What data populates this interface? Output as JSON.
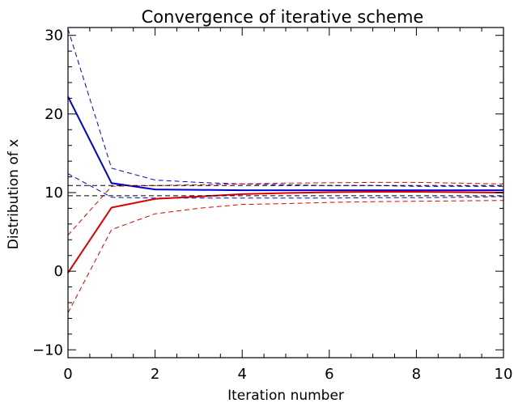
{
  "chart_data": {
    "type": "line",
    "title": "Convergence of iterative scheme",
    "xlabel": "Iteration number",
    "ylabel": "Distribution of x",
    "xlim": [
      0,
      10
    ],
    "ylim": [
      -11,
      31
    ],
    "x_ticks": [
      0,
      2,
      4,
      6,
      8,
      10
    ],
    "y_ticks": [
      -10,
      0,
      10,
      20,
      30
    ],
    "minor_x_step": 0.5,
    "minor_y_step": 2,
    "grid": false,
    "legend": "none",
    "series": [
      {
        "color": "#0000dd",
        "style": "solid",
        "width": 2,
        "x": [
          0,
          1,
          2,
          3,
          4,
          5,
          6,
          7,
          8,
          9,
          10
        ],
        "y": [
          22.2,
          11.2,
          10.4,
          10.35,
          10.3,
          10.3,
          10.3,
          10.3,
          10.3,
          10.3,
          10.3
        ]
      },
      {
        "color": "#0000dd",
        "style": "dashed",
        "width": 1,
        "x": [
          0,
          1,
          2,
          3,
          4,
          5,
          6,
          7,
          8,
          9,
          10
        ],
        "y": [
          30.8,
          13.1,
          11.6,
          11.3,
          11.1,
          11.0,
          10.9,
          10.9,
          10.8,
          10.8,
          10.8
        ]
      },
      {
        "color": "#0000dd",
        "style": "dashed",
        "width": 1,
        "x": [
          0,
          1,
          2,
          3,
          4,
          5,
          6,
          7,
          8,
          9,
          10
        ],
        "y": [
          12.4,
          9.4,
          9.3,
          9.3,
          9.3,
          9.3,
          9.3,
          9.35,
          9.35,
          9.4,
          9.5
        ]
      },
      {
        "color": "#dd0000",
        "style": "solid",
        "width": 2,
        "x": [
          0,
          1,
          2,
          3,
          4,
          5,
          6,
          7,
          8,
          9,
          10
        ],
        "y": [
          -0.2,
          8.1,
          9.2,
          9.5,
          9.8,
          9.95,
          10.05,
          10.1,
          10.1,
          10.05,
          10.0
        ]
      },
      {
        "color": "#dd0000",
        "style": "dashed",
        "width": 1,
        "x": [
          0,
          1,
          2,
          3,
          4,
          5,
          6,
          7,
          8,
          9,
          10
        ],
        "y": [
          4.6,
          10.8,
          10.9,
          11.0,
          11.1,
          11.2,
          11.25,
          11.3,
          11.3,
          11.2,
          11.1
        ]
      },
      {
        "color": "#dd0000",
        "style": "dashed",
        "width": 1,
        "x": [
          0,
          1,
          2,
          3,
          4,
          5,
          6,
          7,
          8,
          9,
          10
        ],
        "y": [
          -5.3,
          5.3,
          7.3,
          8.0,
          8.5,
          8.6,
          8.75,
          8.85,
          8.9,
          8.95,
          9.0
        ]
      },
      {
        "color": "#000000",
        "style": "dashed",
        "width": 1,
        "x": [
          0,
          10
        ],
        "y": [
          10.9,
          10.9
        ]
      },
      {
        "color": "#000000",
        "style": "dashed",
        "width": 1,
        "x": [
          0,
          10
        ],
        "y": [
          9.6,
          9.6
        ]
      }
    ]
  }
}
